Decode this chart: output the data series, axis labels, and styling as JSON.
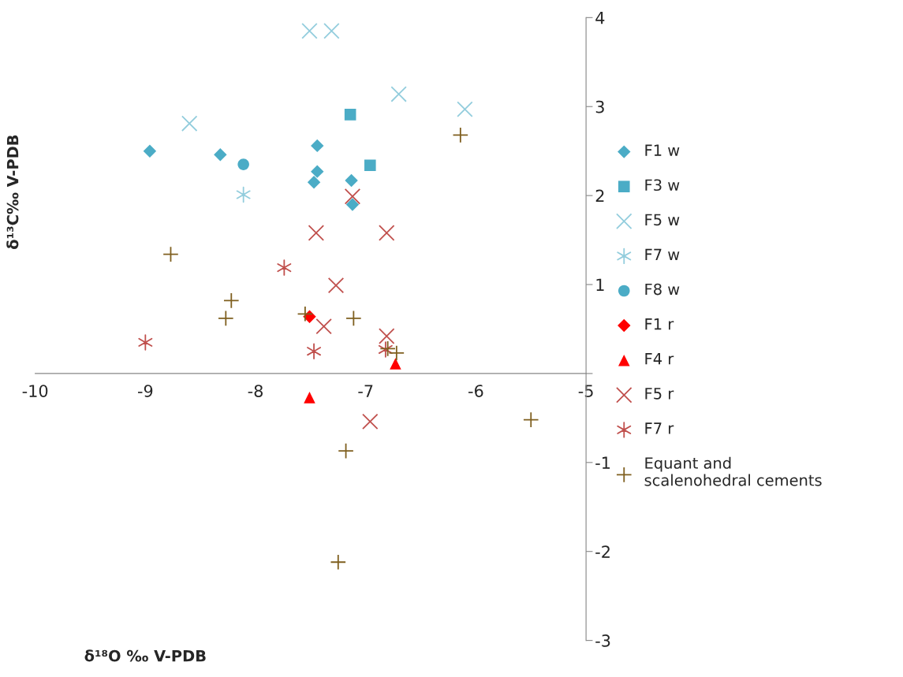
{
  "chart_data": {
    "type": "scatter",
    "xlabel": "δ¹⁸O ‰ V-PDB",
    "ylabel": "δ¹³C‰ V-PDB",
    "xlim": [
      -10,
      -5
    ],
    "ylim": [
      -3,
      4
    ],
    "xticks": [
      -10,
      -9,
      -8,
      -7,
      -6,
      -5
    ],
    "yticks": [
      -3,
      -2,
      -1,
      {
        "value": 0,
        "label": null
      },
      1,
      2,
      3,
      4
    ],
    "grid": false,
    "legend": "right",
    "series": [
      {
        "name": "F1 w",
        "color": "#4bacc6",
        "marker": "diamond",
        "x": [
          -8.96,
          -8.32,
          -7.44,
          -7.44,
          -7.47,
          -7.13,
          -7.12
        ],
        "values": [
          2.5,
          2.46,
          2.56,
          2.27,
          2.15,
          2.17,
          1.9
        ]
      },
      {
        "name": "F3 w",
        "color": "#4bacc6",
        "marker": "square",
        "x": [
          -7.14,
          -6.96
        ],
        "values": [
          2.91,
          2.34
        ]
      },
      {
        "name": "F5 w",
        "color": "#93cddd",
        "marker": "cross",
        "x": [
          -7.51,
          -7.31,
          -6.7,
          -6.1,
          -8.6
        ],
        "values": [
          3.85,
          3.85,
          3.14,
          2.97,
          2.81
        ]
      },
      {
        "name": "F7 w",
        "color": "#93cddd",
        "x": [
          -8.11
        ],
        "values": [
          2.01
        ]
      },
      {
        "name": "F8 w",
        "color": "#4bacc6",
        "marker": "circle",
        "x": [
          -8.11
        ],
        "values": [
          2.35
        ]
      },
      {
        "name": "F1 r",
        "color": "#ff0000",
        "marker": "diamond",
        "x": [
          -7.51
        ],
        "values": [
          0.64
        ]
      },
      {
        "name": "F4 r",
        "color": "#ff0000",
        "marker": "triangle",
        "x": [
          -6.73,
          -7.51
        ],
        "values": [
          0.11,
          -0.27
        ]
      },
      {
        "name": "F5 r",
        "color": "#c0504d",
        "marker": "cross",
        "x": [
          -7.45,
          -6.81,
          -7.27,
          -7.38,
          -6.81,
          -6.96,
          -7.12
        ],
        "values": [
          1.58,
          1.58,
          0.99,
          0.53,
          0.42,
          -0.54,
          1.99
        ]
      },
      {
        "name": "F7 r",
        "color": "#c0504d",
        "x": [
          -7.74,
          -9.0,
          -7.47,
          -6.82
        ],
        "values": [
          1.19,
          0.35,
          0.25,
          0.27
        ]
      },
      {
        "name": "Equant and\nscalenohedral cements",
        "color": "#7f5f1f",
        "marker": "plus",
        "x": [
          -8.77,
          -8.22,
          -8.27,
          -7.55,
          -7.11,
          -6.72,
          -6.8,
          -6.14,
          -5.5,
          -7.18,
          -7.25
        ],
        "values": [
          1.34,
          0.82,
          0.62,
          0.67,
          0.62,
          0.23,
          0.28,
          2.68,
          -0.52,
          -0.87,
          -2.12
        ]
      }
    ]
  }
}
